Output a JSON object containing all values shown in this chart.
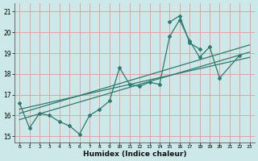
{
  "title": "",
  "xlabel": "Humidex (Indice chaleur)",
  "bg_color": "#cce8e8",
  "grid_color": "#e8a0a0",
  "line_color": "#2d7a6e",
  "xlim": [
    -0.5,
    23.5
  ],
  "ylim": [
    14.7,
    21.4
  ],
  "yticks": [
    15,
    16,
    17,
    18,
    19,
    20,
    21
  ],
  "xticks": [
    0,
    1,
    2,
    3,
    4,
    5,
    6,
    7,
    8,
    9,
    10,
    11,
    12,
    13,
    14,
    15,
    16,
    17,
    18,
    19,
    20,
    21,
    22,
    23
  ],
  "series1_x": [
    0,
    1,
    2,
    3,
    4,
    5,
    6,
    7,
    8,
    9,
    10,
    11,
    12,
    13,
    14,
    15,
    16,
    17,
    18,
    19,
    20,
    22
  ],
  "series1_y": [
    16.6,
    15.4,
    16.1,
    16.0,
    15.7,
    15.5,
    15.1,
    16.0,
    16.3,
    16.7,
    18.3,
    17.5,
    17.4,
    17.6,
    17.5,
    19.8,
    20.6,
    19.6,
    18.8,
    19.3,
    17.8,
    18.9
  ],
  "series2_x": [
    15,
    16,
    17,
    18
  ],
  "series2_y": [
    20.5,
    20.8,
    19.5,
    19.2
  ],
  "trend1_x": [
    0,
    23
  ],
  "trend1_y": [
    15.8,
    19.05
  ],
  "trend2_x": [
    0,
    23
  ],
  "trend2_y": [
    16.1,
    19.4
  ],
  "trend3_x": [
    0,
    23
  ],
  "trend3_y": [
    16.3,
    18.8
  ]
}
